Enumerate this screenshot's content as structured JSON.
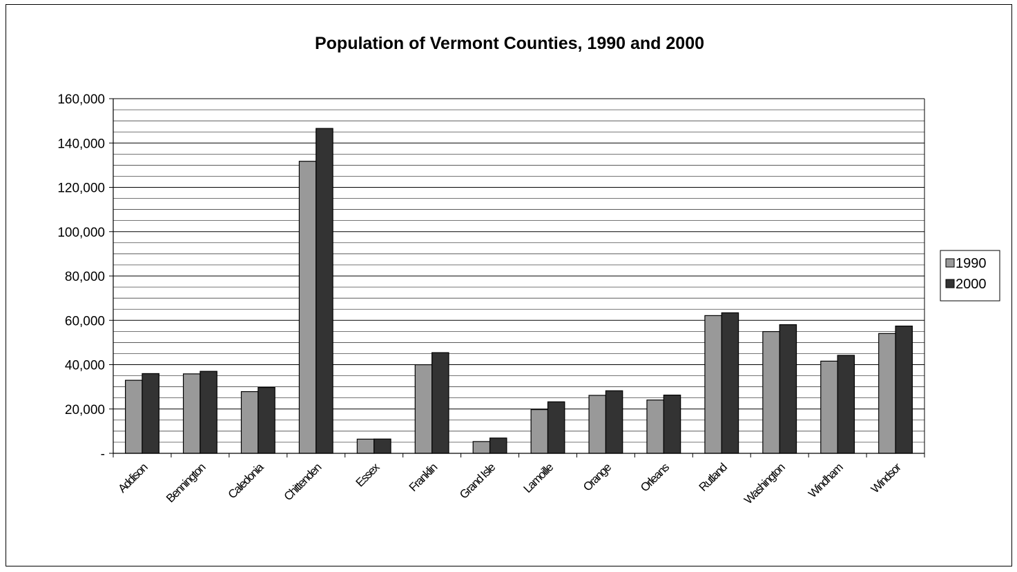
{
  "chart_data": {
    "type": "bar",
    "title": "Population of Vermont Counties, 1990 and 2000",
    "xlabel": "",
    "ylabel": "",
    "categories": [
      "Addison",
      "Bennington",
      "Caledonia",
      "Chittenden",
      "Essex",
      "Franklin",
      "Grand Isle",
      "Lamoille",
      "Orange",
      "Orleans",
      "Rutland",
      "Washington",
      "Windham",
      "Windsor"
    ],
    "series": [
      {
        "name": "1990",
        "color": "#999999",
        "values": [
          32953,
          35845,
          27846,
          131761,
          6405,
          39980,
          5318,
          19735,
          26149,
          24053,
          62142,
          54928,
          41588,
          54055
        ]
      },
      {
        "name": "2000",
        "color": "#333333",
        "values": [
          35974,
          36994,
          29702,
          146571,
          6459,
          45417,
          6901,
          23233,
          28226,
          26277,
          63400,
          58039,
          44216,
          57418
        ]
      }
    ],
    "ylim": [
      0,
      160000
    ],
    "y_ticks": [
      {
        "value": 0,
        "label": "-"
      },
      {
        "value": 20000,
        "label": "20,000"
      },
      {
        "value": 40000,
        "label": "40,000"
      },
      {
        "value": 60000,
        "label": "60,000"
      },
      {
        "value": 80000,
        "label": "80,000"
      },
      {
        "value": 100000,
        "label": "100,000"
      },
      {
        "value": 120000,
        "label": "120,000"
      },
      {
        "value": 140000,
        "label": "140,000"
      },
      {
        "value": 160000,
        "label": "160,000"
      }
    ],
    "minor_grid_step": 5000,
    "grid": true,
    "legend_position": "right"
  }
}
